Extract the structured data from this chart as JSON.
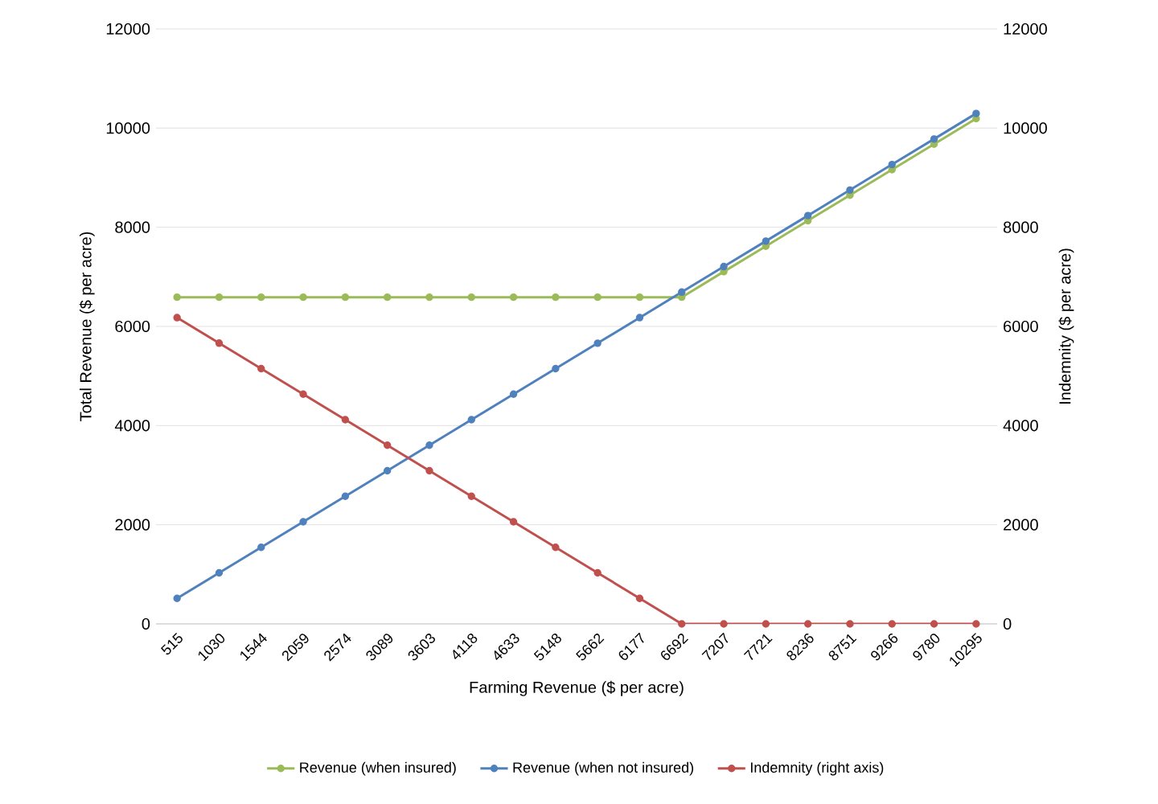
{
  "chart_data": {
    "type": "line",
    "xlabel": "Farming Revenue ($ per acre)",
    "ylabel": "Total Revenue ($ per acre)",
    "y2label": "Indemnity ($ per acre)",
    "categories": [
      "515",
      "1030",
      "1544",
      "2059",
      "2574",
      "3089",
      "3603",
      "4118",
      "4633",
      "5148",
      "5662",
      "6177",
      "6692",
      "7207",
      "7721",
      "8236",
      "8751",
      "9266",
      "9780",
      "10295"
    ],
    "series": [
      {
        "name": "Revenue (when insured)",
        "color": "#9bbb59",
        "values": [
          6589,
          6589,
          6589,
          6589,
          6589,
          6589,
          6589,
          6589,
          6589,
          6589,
          6589,
          6589,
          6589,
          7104,
          7618,
          8133,
          8648,
          9163,
          9677,
          10192
        ]
      },
      {
        "name": "Revenue (when not insured)",
        "color": "#4f81bd",
        "values": [
          515,
          1030,
          1544,
          2059,
          2574,
          3089,
          3603,
          4118,
          4633,
          5148,
          5662,
          6177,
          6692,
          7207,
          7721,
          8236,
          8751,
          9266,
          9780,
          10295
        ]
      },
      {
        "name": "Indemnity (right axis)",
        "color": "#c0504d",
        "axis": "y2",
        "values": [
          6177,
          5662,
          5148,
          4633,
          4118,
          3603,
          3089,
          2574,
          2059,
          1544,
          1030,
          515,
          0,
          0,
          0,
          0,
          0,
          0,
          0,
          0
        ]
      }
    ],
    "ylim": [
      0,
      12000
    ],
    "yticks": [
      0,
      2000,
      4000,
      6000,
      8000,
      10000,
      12000
    ],
    "y2lim": [
      0,
      12000
    ],
    "y2ticks": [
      0,
      2000,
      4000,
      6000,
      8000,
      10000,
      12000
    ],
    "grid": "y",
    "legend": "bottom",
    "marker": "circle",
    "line_style": "solid"
  }
}
